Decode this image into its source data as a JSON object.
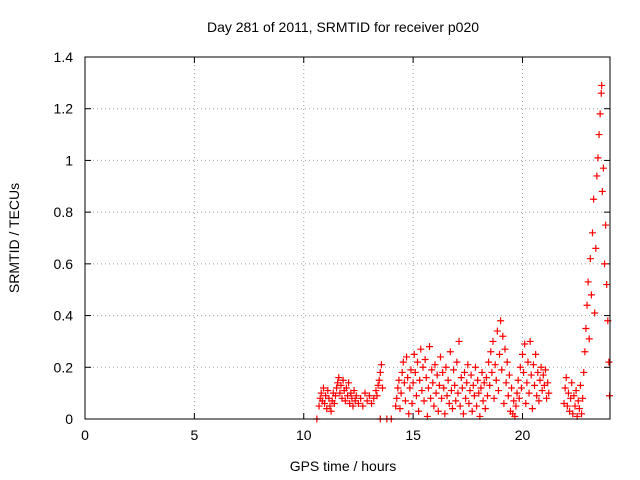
{
  "chart_data": {
    "type": "scatter",
    "title": "Day 281 of 2011, SRMTID for receiver p020",
    "xlabel": "GPS time / hours",
    "ylabel": "SRMTID / TECUs",
    "xlim": [
      0,
      24
    ],
    "ylim": [
      0,
      1.4
    ],
    "xticks": [
      0,
      5,
      10,
      15,
      20
    ],
    "yticks": [
      0,
      0.2,
      0.4,
      0.6,
      0.8,
      1,
      1.2,
      1.4
    ],
    "xtick_labels": [
      "0",
      "5",
      "10",
      "15",
      "20"
    ],
    "ytick_labels": [
      "0",
      "0.2",
      "0.4",
      "0.6",
      "0.8",
      "1",
      "1.2",
      "1.4"
    ],
    "grid": true,
    "marker": "plus",
    "marker_color": "#ff0000",
    "series": [
      {
        "name": "SRMTID",
        "points": [
          [
            10.6,
            0.0
          ],
          [
            10.7,
            0.05
          ],
          [
            10.75,
            0.08
          ],
          [
            10.8,
            0.1
          ],
          [
            10.85,
            0.07
          ],
          [
            10.9,
            0.12
          ],
          [
            10.95,
            0.06
          ],
          [
            11.0,
            0.09
          ],
          [
            11.05,
            0.04
          ],
          [
            11.1,
            0.11
          ],
          [
            11.15,
            0.08
          ],
          [
            11.2,
            0.05
          ],
          [
            11.25,
            0.03
          ],
          [
            11.3,
            0.07
          ],
          [
            11.35,
            0.1
          ],
          [
            11.4,
            0.06
          ],
          [
            11.45,
            0.09
          ],
          [
            11.5,
            0.12
          ],
          [
            11.55,
            0.14
          ],
          [
            11.6,
            0.16
          ],
          [
            11.65,
            0.1
          ],
          [
            11.7,
            0.13
          ],
          [
            11.75,
            0.08
          ],
          [
            11.8,
            0.15
          ],
          [
            11.85,
            0.11
          ],
          [
            11.9,
            0.07
          ],
          [
            11.95,
            0.12
          ],
          [
            12.0,
            0.09
          ],
          [
            12.05,
            0.14
          ],
          [
            12.1,
            0.06
          ],
          [
            12.15,
            0.1
          ],
          [
            12.2,
            0.08
          ],
          [
            12.25,
            0.05
          ],
          [
            12.3,
            0.11
          ],
          [
            12.35,
            0.07
          ],
          [
            12.4,
            0.09
          ],
          [
            12.5,
            0.06
          ],
          [
            12.6,
            0.08
          ],
          [
            12.7,
            0.05
          ],
          [
            12.8,
            0.1
          ],
          [
            12.9,
            0.07
          ],
          [
            13.0,
            0.09
          ],
          [
            13.1,
            0.06
          ],
          [
            13.2,
            0.08
          ],
          [
            13.3,
            0.11
          ],
          [
            13.35,
            0.09
          ],
          [
            13.4,
            0.13
          ],
          [
            13.45,
            0.15
          ],
          [
            13.5,
            0.18
          ],
          [
            13.55,
            0.21
          ],
          [
            13.6,
            0.12
          ],
          [
            13.5,
            0.0
          ],
          [
            13.8,
            0.0
          ],
          [
            14.0,
            0.0
          ],
          [
            14.2,
            0.05
          ],
          [
            14.25,
            0.08
          ],
          [
            14.3,
            0.12
          ],
          [
            14.35,
            0.15
          ],
          [
            14.4,
            0.04
          ],
          [
            14.45,
            0.1
          ],
          [
            14.5,
            0.18
          ],
          [
            14.55,
            0.22
          ],
          [
            14.6,
            0.14
          ],
          [
            14.65,
            0.07
          ],
          [
            14.7,
            0.24
          ],
          [
            14.75,
            0.16
          ],
          [
            14.8,
            0.02
          ],
          [
            14.85,
            0.12
          ],
          [
            14.9,
            0.19
          ],
          [
            14.95,
            0.06
          ],
          [
            15.0,
            0.14
          ],
          [
            15.05,
            0.25
          ],
          [
            15.1,
            0.18
          ],
          [
            15.15,
            0.09
          ],
          [
            15.2,
            0.22
          ],
          [
            15.25,
            0.03
          ],
          [
            15.3,
            0.15
          ],
          [
            15.35,
            0.27
          ],
          [
            15.4,
            0.11
          ],
          [
            15.45,
            0.2
          ],
          [
            15.5,
            0.07
          ],
          [
            15.55,
            0.23
          ],
          [
            15.6,
            0.16
          ],
          [
            15.65,
            0.01
          ],
          [
            15.7,
            0.12
          ],
          [
            15.75,
            0.28
          ],
          [
            15.8,
            0.08
          ],
          [
            15.85,
            0.19
          ],
          [
            15.9,
            0.14
          ],
          [
            15.95,
            0.05
          ],
          [
            16.0,
            0.21
          ],
          [
            16.05,
            0.1
          ],
          [
            16.1,
            0.17
          ],
          [
            16.15,
            0.03
          ],
          [
            16.2,
            0.13
          ],
          [
            16.25,
            0.24
          ],
          [
            16.3,
            0.08
          ],
          [
            16.35,
            0.18
          ],
          [
            16.4,
            0.12
          ],
          [
            16.45,
            0.02
          ],
          [
            16.5,
            0.2
          ],
          [
            16.55,
            0.09
          ],
          [
            16.6,
            0.15
          ],
          [
            16.65,
            0.06
          ],
          [
            16.7,
            0.26
          ],
          [
            16.75,
            0.11
          ],
          [
            16.8,
            0.04
          ],
          [
            16.85,
            0.19
          ],
          [
            16.9,
            0.13
          ],
          [
            16.95,
            0.07
          ],
          [
            17.0,
            0.22
          ],
          [
            17.05,
            0.1
          ],
          [
            17.1,
            0.3
          ],
          [
            17.15,
            0.05
          ],
          [
            17.2,
            0.16
          ],
          [
            17.25,
            0.12
          ],
          [
            17.3,
            0.02
          ],
          [
            17.35,
            0.18
          ],
          [
            17.4,
            0.08
          ],
          [
            17.45,
            0.14
          ],
          [
            17.5,
            0.21
          ],
          [
            17.55,
            0.06
          ],
          [
            17.6,
            0.11
          ],
          [
            17.65,
            0.17
          ],
          [
            17.7,
            0.03
          ],
          [
            17.75,
            0.13
          ],
          [
            17.8,
            0.09
          ],
          [
            17.85,
            0.2
          ],
          [
            17.9,
            0.05
          ],
          [
            17.95,
            0.15
          ],
          [
            18.0,
            0.1
          ],
          [
            18.05,
            0.01
          ],
          [
            18.1,
            0.12
          ],
          [
            18.15,
            0.18
          ],
          [
            18.2,
            0.07
          ],
          [
            18.25,
            0.14
          ],
          [
            18.3,
            0.04
          ],
          [
            18.35,
            0.16
          ],
          [
            18.4,
            0.09
          ],
          [
            18.45,
            0.22
          ],
          [
            18.5,
            0.13
          ],
          [
            18.55,
            0.26
          ],
          [
            18.6,
            0.18
          ],
          [
            18.65,
            0.3
          ],
          [
            18.7,
            0.08
          ],
          [
            18.75,
            0.21
          ],
          [
            18.8,
            0.15
          ],
          [
            18.85,
            0.34
          ],
          [
            18.9,
            0.11
          ],
          [
            18.95,
            0.25
          ],
          [
            19.0,
            0.38
          ],
          [
            19.05,
            0.19
          ],
          [
            19.1,
            0.32
          ],
          [
            19.15,
            0.06
          ],
          [
            19.2,
            0.27
          ],
          [
            19.25,
            0.14
          ],
          [
            19.3,
            0.22
          ],
          [
            19.35,
            0.09
          ],
          [
            19.4,
            0.17
          ],
          [
            19.45,
            0.03
          ],
          [
            19.5,
            0.12
          ],
          [
            19.55,
            0.02
          ],
          [
            19.6,
            0.07
          ],
          [
            19.65,
            0.01
          ],
          [
            19.7,
            0.05
          ],
          [
            19.75,
            0.1
          ],
          [
            19.8,
            0.15
          ],
          [
            19.85,
            0.08
          ],
          [
            19.9,
            0.2
          ],
          [
            19.95,
            0.12
          ],
          [
            20.0,
            0.25
          ],
          [
            20.05,
            0.18
          ],
          [
            20.1,
            0.29
          ],
          [
            20.15,
            0.06
          ],
          [
            20.2,
            0.14
          ],
          [
            20.25,
            0.22
          ],
          [
            20.3,
            0.1
          ],
          [
            20.35,
            0.3
          ],
          [
            20.4,
            0.17
          ],
          [
            20.45,
            0.04
          ],
          [
            20.5,
            0.21
          ],
          [
            20.55,
            0.13
          ],
          [
            20.6,
            0.25
          ],
          [
            20.65,
            0.09
          ],
          [
            20.7,
            0.18
          ],
          [
            20.75,
            0.07
          ],
          [
            20.8,
            0.15
          ],
          [
            20.85,
            0.2
          ],
          [
            20.9,
            0.11
          ],
          [
            20.95,
            0.17
          ],
          [
            21.0,
            0.13
          ],
          [
            21.05,
            0.19
          ],
          [
            21.1,
            0.08
          ],
          [
            21.15,
            0.14
          ],
          [
            21.2,
            0.1
          ],
          [
            21.9,
            0.06
          ],
          [
            21.95,
            0.12
          ],
          [
            22.0,
            0.16
          ],
          [
            22.05,
            0.05
          ],
          [
            22.1,
            0.1
          ],
          [
            22.15,
            0.03
          ],
          [
            22.2,
            0.08
          ],
          [
            22.25,
            0.14
          ],
          [
            22.3,
            0.02
          ],
          [
            22.35,
            0.09
          ],
          [
            22.4,
            0.05
          ],
          [
            22.45,
            0.11
          ],
          [
            22.5,
            0.01
          ],
          [
            22.55,
            0.07
          ],
          [
            22.6,
            0.04
          ],
          [
            22.65,
            0.13
          ],
          [
            22.7,
            0.02
          ],
          [
            22.75,
            0.08
          ],
          [
            22.8,
            0.18
          ],
          [
            22.85,
            0.26
          ],
          [
            22.9,
            0.35
          ],
          [
            22.95,
            0.44
          ],
          [
            23.0,
            0.53
          ],
          [
            23.05,
            0.31
          ],
          [
            23.1,
            0.62
          ],
          [
            23.15,
            0.48
          ],
          [
            23.2,
            0.72
          ],
          [
            23.25,
            0.85
          ],
          [
            23.3,
            0.41
          ],
          [
            23.35,
            0.66
          ],
          [
            23.4,
            0.94
          ],
          [
            23.45,
            1.01
          ],
          [
            23.5,
            1.1
          ],
          [
            23.55,
            1.18
          ],
          [
            23.6,
            1.26
          ],
          [
            23.62,
            1.29
          ],
          [
            23.65,
            0.88
          ],
          [
            23.7,
            0.97
          ],
          [
            23.75,
            0.6
          ],
          [
            23.8,
            0.75
          ],
          [
            23.85,
            0.52
          ],
          [
            23.9,
            0.38
          ],
          [
            23.95,
            0.22
          ],
          [
            23.98,
            0.09
          ]
        ]
      }
    ]
  }
}
